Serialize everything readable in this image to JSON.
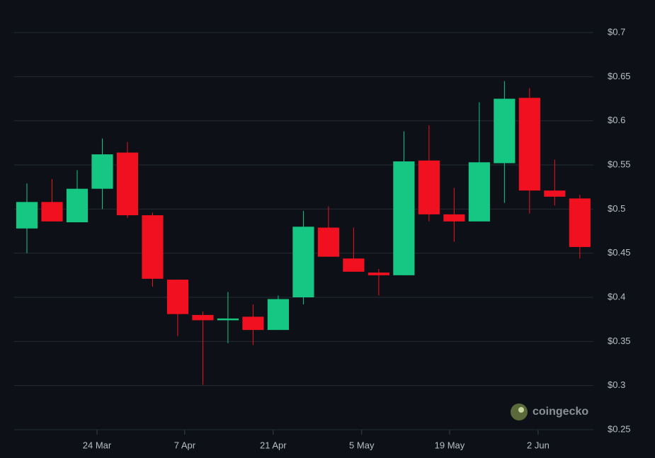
{
  "chart_data": {
    "type": "candlestick",
    "x": [
      0,
      1,
      2,
      3,
      4,
      5,
      6,
      7,
      8,
      9,
      10,
      11,
      12,
      13,
      14,
      15,
      16,
      17,
      18,
      19,
      20,
      21,
      22
    ],
    "open": [
      0.478,
      0.508,
      0.485,
      0.523,
      0.564,
      0.493,
      0.42,
      0.38,
      0.374,
      0.378,
      0.363,
      0.4,
      0.479,
      0.444,
      0.428,
      0.425,
      0.555,
      0.494,
      0.486,
      0.552,
      0.626,
      0.521,
      0.512
    ],
    "high": [
      0.529,
      0.534,
      0.544,
      0.58,
      0.576,
      0.496,
      0.42,
      0.384,
      0.406,
      0.392,
      0.402,
      0.498,
      0.503,
      0.479,
      0.432,
      0.588,
      0.595,
      0.524,
      0.621,
      0.645,
      0.637,
      0.556,
      0.516
    ],
    "low": [
      0.45,
      0.486,
      0.485,
      0.5,
      0.49,
      0.412,
      0.356,
      0.301,
      0.348,
      0.346,
      0.363,
      0.392,
      0.446,
      0.429,
      0.402,
      0.425,
      0.486,
      0.463,
      0.486,
      0.507,
      0.495,
      0.504,
      0.444
    ],
    "close": [
      0.508,
      0.486,
      0.523,
      0.562,
      0.493,
      0.421,
      0.381,
      0.374,
      0.376,
      0.363,
      0.398,
      0.48,
      0.446,
      0.429,
      0.425,
      0.554,
      0.494,
      0.486,
      0.553,
      0.625,
      0.521,
      0.514,
      0.457
    ],
    "up_color": "#16c784",
    "down_color": "#f0101f",
    "xlim": [
      -0.507,
      22.54
    ],
    "xticks": [
      {
        "value": 2.79,
        "label": "24 Mar"
      },
      {
        "value": 6.28,
        "label": "7 Apr"
      },
      {
        "value": 9.8,
        "label": "21 Apr"
      },
      {
        "value": 13.32,
        "label": "5 May"
      },
      {
        "value": 16.82,
        "label": "19 May"
      },
      {
        "value": 20.34,
        "label": "2 Jun"
      }
    ],
    "ylim": [
      0.25,
      0.7
    ],
    "yticks": [
      {
        "value": 0.25,
        "label": "$0.25"
      },
      {
        "value": 0.3,
        "label": "$0.3"
      },
      {
        "value": 0.35,
        "label": "$0.35"
      },
      {
        "value": 0.4,
        "label": "$0.4"
      },
      {
        "value": 0.45,
        "label": "$0.45"
      },
      {
        "value": 0.5,
        "label": "$0.5"
      },
      {
        "value": 0.55,
        "label": "$0.55"
      },
      {
        "value": 0.6,
        "label": "$0.6"
      },
      {
        "value": 0.65,
        "label": "$0.65"
      },
      {
        "value": 0.7,
        "label": "$0.7"
      }
    ],
    "grid": true,
    "watermark": "coingecko"
  }
}
